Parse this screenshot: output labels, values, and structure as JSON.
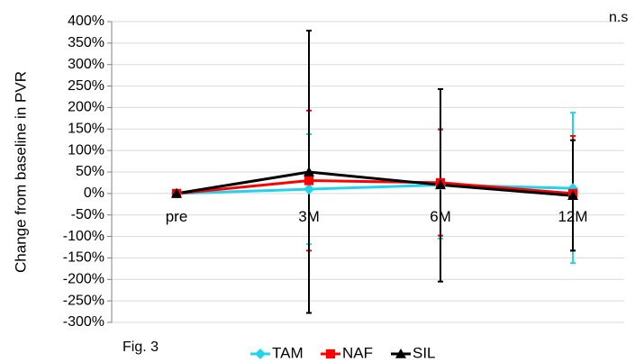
{
  "corner_note": "n.s",
  "figure_label": "Fig. 3",
  "chart_data": {
    "type": "line",
    "ylabel": "Change from baseline in PVR",
    "categories": [
      "pre",
      "3M",
      "6M",
      "12M"
    ],
    "ylim": [
      -300,
      400
    ],
    "y_ticks": [
      400,
      350,
      300,
      250,
      200,
      150,
      100,
      50,
      0,
      -50,
      -100,
      -150,
      -200,
      -250,
      -300
    ],
    "y_tick_labels": [
      "400%",
      "350%",
      "300%",
      "250%",
      "200%",
      "150%",
      "100%",
      "50%",
      "0%",
      "-50%",
      "-100%",
      "-150%",
      "-200%",
      "-250%",
      "-300%"
    ],
    "grid": "horizontal",
    "legend_position": "bottom",
    "series": [
      {
        "name": "TAM",
        "color": "#22d3ee",
        "marker": "diamond",
        "values": [
          0,
          10,
          20,
          12
        ],
        "error_low": [
          0,
          -118,
          -105,
          -162
        ],
        "error_high": [
          0,
          138,
          150,
          188
        ]
      },
      {
        "name": "NAF",
        "color": "#ff0000",
        "marker": "square",
        "values": [
          0,
          30,
          25,
          0
        ],
        "error_low": [
          0,
          -133,
          -98,
          -133
        ],
        "error_high": [
          0,
          193,
          149,
          134
        ]
      },
      {
        "name": "SIL",
        "color": "#000000",
        "marker": "triangle",
        "values": [
          0,
          50,
          20,
          -5
        ],
        "error_low": [
          0,
          -278,
          -205,
          -133
        ],
        "error_high": [
          0,
          379,
          243,
          124
        ]
      }
    ]
  }
}
